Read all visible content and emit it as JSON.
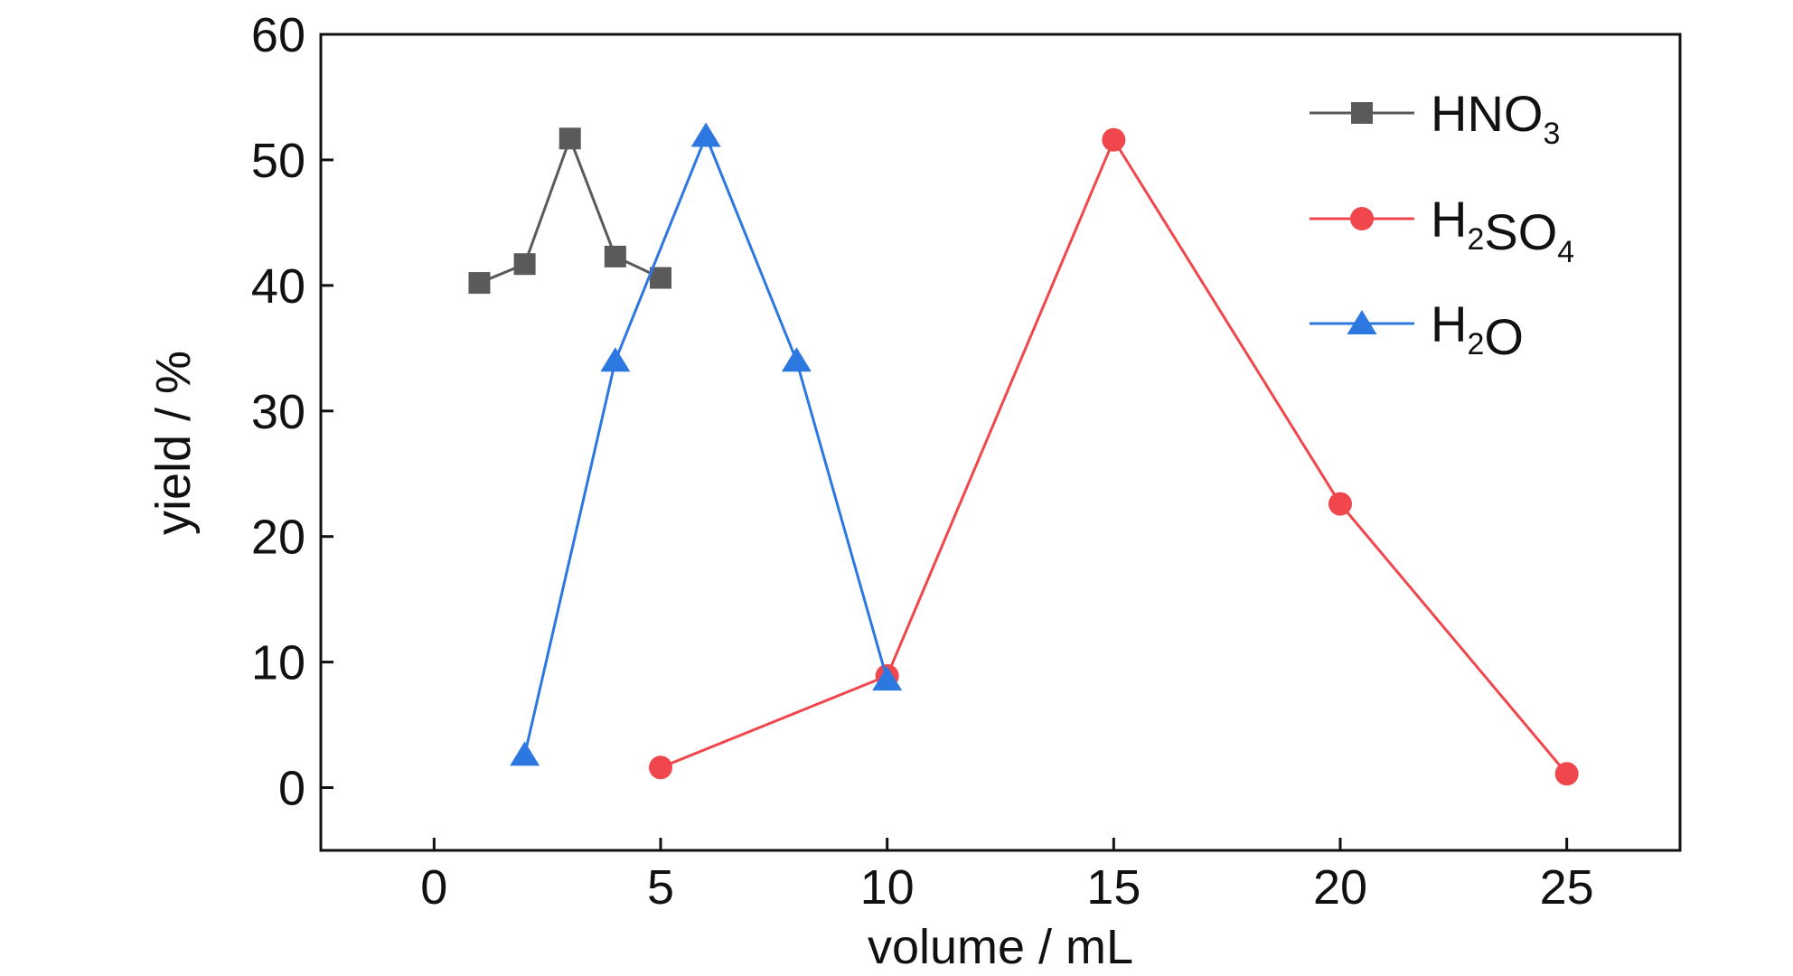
{
  "chart_data": {
    "type": "line",
    "xlabel": "volume / mL",
    "ylabel": "yield / %",
    "xlim": [
      -2.5,
      27.5
    ],
    "ylim": [
      -5,
      60
    ],
    "x_ticks": [
      0,
      5,
      10,
      15,
      20,
      25
    ],
    "y_ticks": [
      0,
      10,
      20,
      30,
      40,
      50,
      60
    ],
    "grid": false,
    "legend_position": "top-right",
    "series": [
      {
        "name": "HNO3",
        "legend_parts": [
          {
            "t": "HNO"
          },
          {
            "t": "3",
            "sub": true
          }
        ],
        "color": "#5a5a5a",
        "marker": "square",
        "x": [
          1,
          2,
          3,
          4,
          5
        ],
        "y": [
          40.2,
          41.7,
          51.7,
          42.3,
          40.6
        ]
      },
      {
        "name": "H2SO4",
        "legend_parts": [
          {
            "t": "H"
          },
          {
            "t": "2",
            "sub": true
          },
          {
            "t": "SO"
          },
          {
            "t": "4",
            "sub": true
          }
        ],
        "color": "#f0474c",
        "marker": "circle",
        "x": [
          5,
          10,
          15,
          20,
          25
        ],
        "y": [
          1.6,
          8.9,
          51.6,
          22.6,
          1.1
        ]
      },
      {
        "name": "H2O",
        "legend_parts": [
          {
            "t": "H"
          },
          {
            "t": "2",
            "sub": true
          },
          {
            "t": "O"
          }
        ],
        "color": "#2c78e0",
        "marker": "triangle",
        "x": [
          2,
          4,
          6,
          8,
          10
        ],
        "y": [
          2.6,
          34.0,
          51.9,
          34.0,
          8.6
        ]
      }
    ]
  }
}
